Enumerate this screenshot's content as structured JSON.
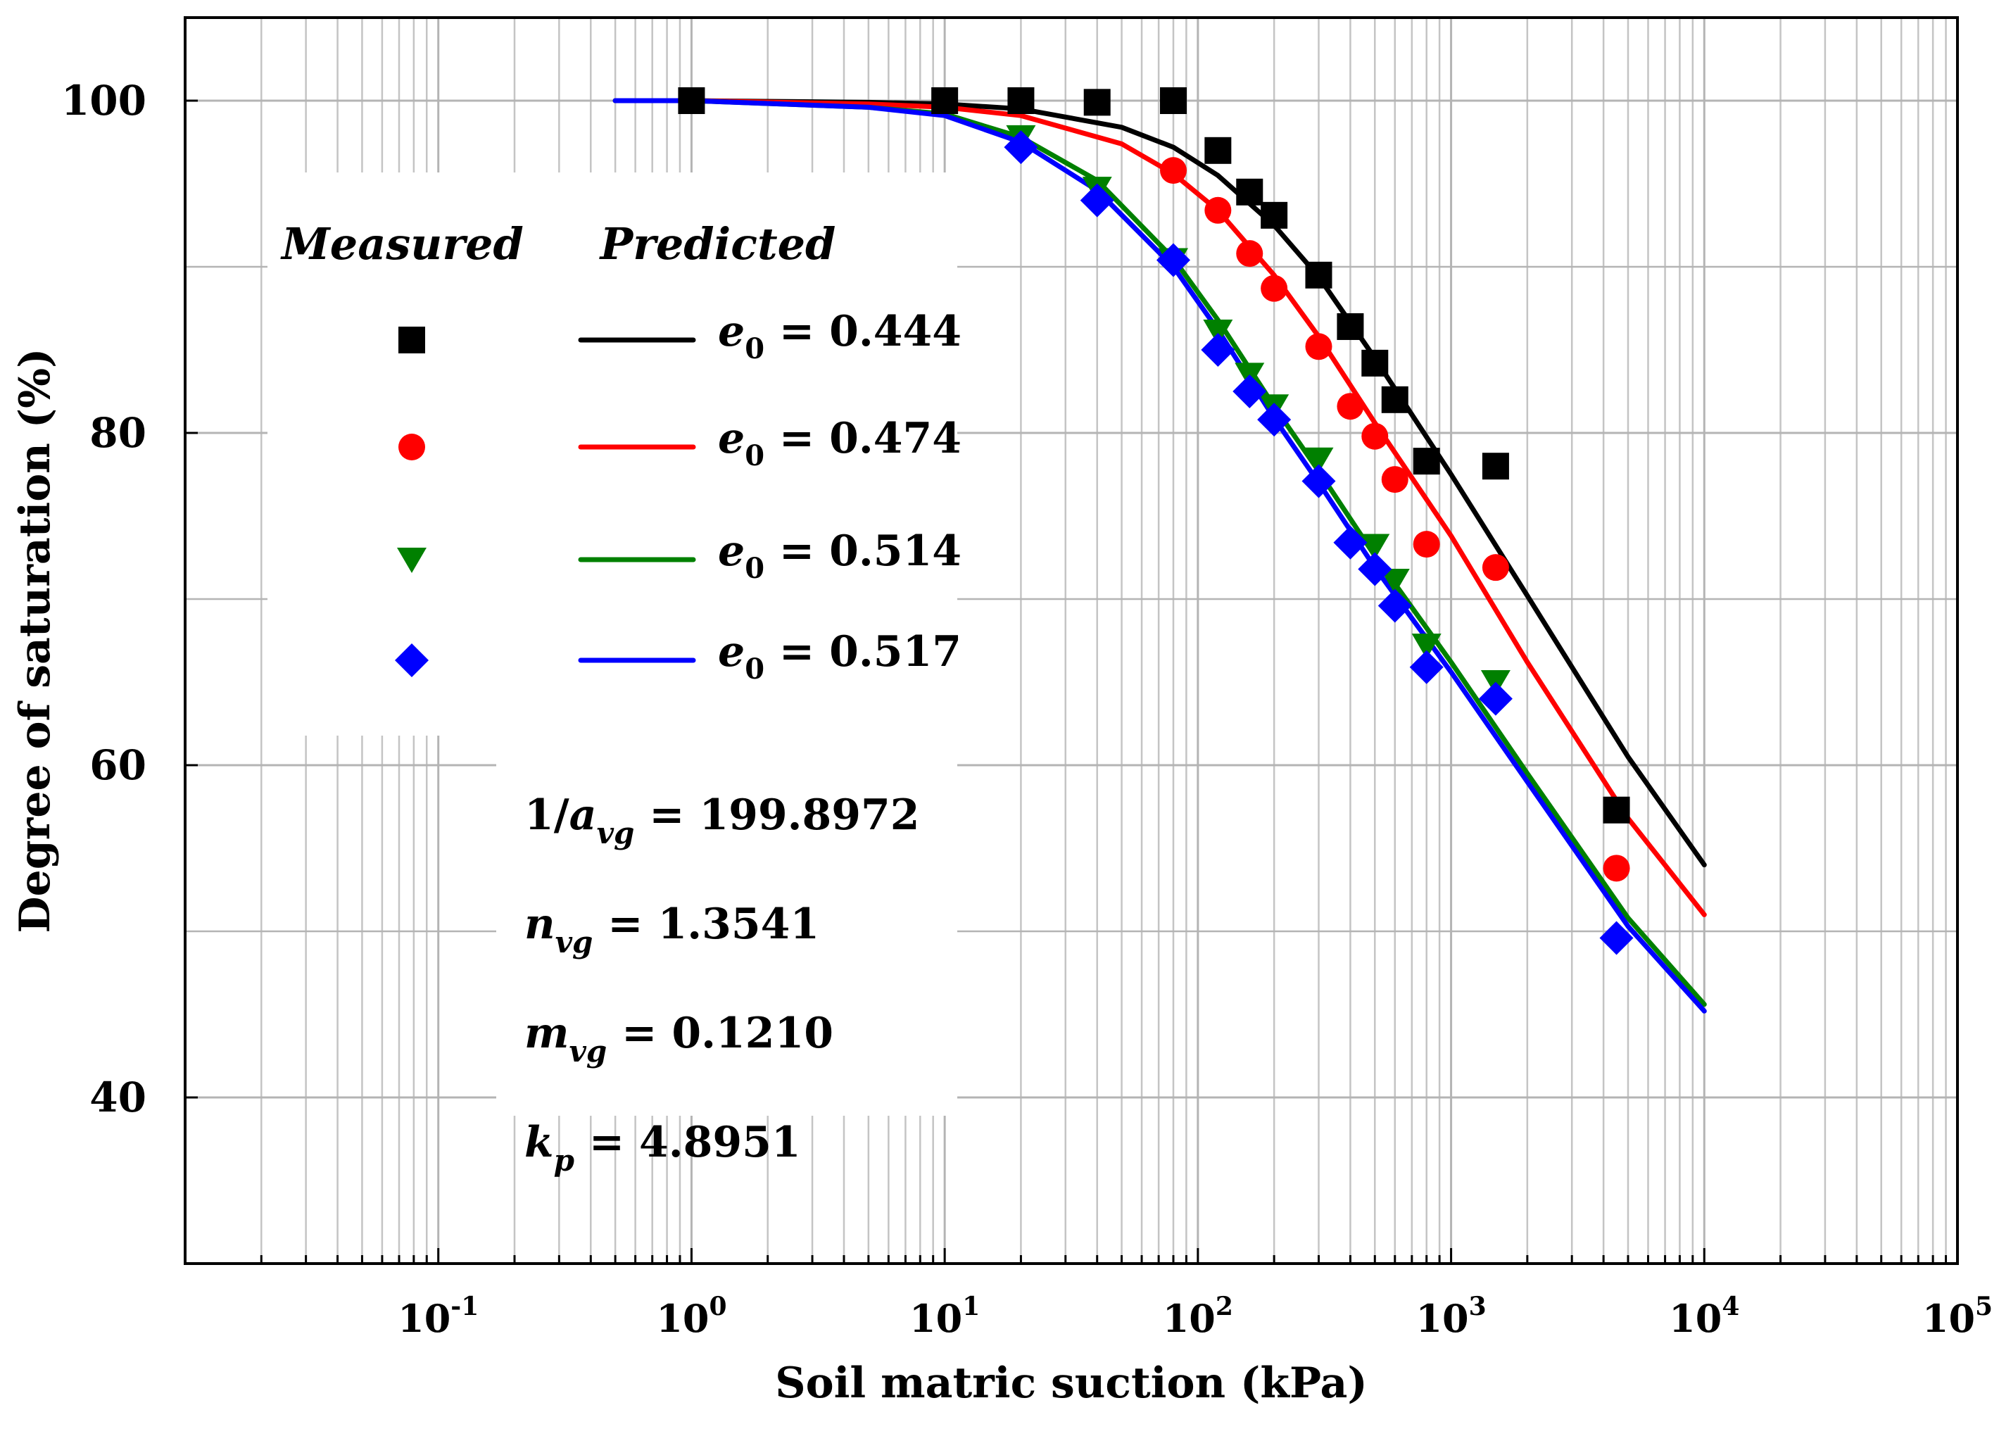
{
  "chart_data": {
    "type": "scatter",
    "title": "",
    "xlabel": "Soil matric suction (kPa)",
    "ylabel": "Degree of saturation (%)",
    "x_scale": "log",
    "xlim": [
      0.01,
      100000
    ],
    "ylim": [
      30,
      105
    ],
    "grid": true,
    "x_tick_labels": [
      {
        "base": "10",
        "exp": "-1",
        "value": 0.1
      },
      {
        "base": "10",
        "exp": "0",
        "value": 1
      },
      {
        "base": "10",
        "exp": "1",
        "value": 10
      },
      {
        "base": "10",
        "exp": "2",
        "value": 100
      },
      {
        "base": "10",
        "exp": "3",
        "value": 1000
      },
      {
        "base": "10",
        "exp": "4",
        "value": 10000
      },
      {
        "base": "10",
        "exp": "5",
        "value": 100000
      }
    ],
    "y_tick_labels": [
      {
        "label": "40",
        "value": 40
      },
      {
        "label": "60",
        "value": 60
      },
      {
        "label": "80",
        "value": 80
      },
      {
        "label": "100",
        "value": 100
      }
    ],
    "legend": {
      "position": "left",
      "measured_title": "Measured",
      "predicted_title": "Predicted",
      "entries": [
        {
          "sym": "e",
          "sub": "0",
          "rest": " = 0.444"
        },
        {
          "sym": "e",
          "sub": "0",
          "rest": " = 0.474"
        },
        {
          "sym": "e",
          "sub": "0",
          "rest": " = 0.514"
        },
        {
          "sym": "e",
          "sub": "0",
          "rest": " = 0.517"
        }
      ]
    },
    "parameters": [
      {
        "pre": "1/",
        "sym": "a",
        "sub": "vg",
        "rest": " = 199.8972"
      },
      {
        "pre": "",
        "sym": "n",
        "sub": "vg",
        "rest": " = 1.3541"
      },
      {
        "pre": "",
        "sym": "m",
        "sub": "vg",
        "rest": " = 0.1210"
      },
      {
        "pre": "",
        "sym": "k",
        "sub": "p",
        "rest": " = 4.8951"
      }
    ],
    "series": [
      {
        "name": "e0 = 0.444",
        "color": "#000000",
        "marker": "square",
        "measured_x": [
          1,
          10,
          20,
          40,
          80,
          120,
          160,
          200,
          300,
          400,
          500,
          600,
          800,
          1500,
          4500
        ],
        "measured_y": [
          100,
          100,
          100,
          99.9,
          100,
          97,
          94.5,
          93.1,
          89.5,
          86.4,
          84.2,
          82,
          78.3,
          78,
          57.3
        ],
        "predicted_x": [
          0.5,
          1,
          5,
          10,
          20,
          50,
          80,
          120,
          200,
          300,
          500,
          1000,
          2000,
          5000,
          10000
        ],
        "predicted_y": [
          100,
          100,
          99.9,
          99.8,
          99.5,
          98.4,
          97.2,
          95.5,
          92.5,
          89.4,
          84.5,
          77.5,
          70.2,
          60.5,
          54
        ]
      },
      {
        "name": "e0 = 0.474",
        "color": "#ff0000",
        "marker": "circle",
        "measured_x": [
          80,
          120,
          160,
          200,
          300,
          400,
          500,
          600,
          800,
          1500,
          4500
        ],
        "measured_y": [
          95.8,
          93.4,
          90.8,
          88.7,
          85.2,
          81.6,
          79.8,
          77.2,
          73.3,
          71.9,
          53.8
        ],
        "predicted_x": [
          0.5,
          1,
          5,
          10,
          20,
          50,
          80,
          120,
          200,
          300,
          500,
          1000,
          2000,
          5000,
          10000
        ],
        "predicted_y": [
          100,
          100,
          99.8,
          99.6,
          99.1,
          97.4,
          95.6,
          93.4,
          89.5,
          85.8,
          80.6,
          73.8,
          66.2,
          56.8,
          51
        ]
      },
      {
        "name": "e0 = 0.514",
        "color": "#008000",
        "marker": "triangle-down",
        "measured_x": [
          20,
          40,
          80,
          120,
          160,
          200,
          300,
          500,
          600,
          800,
          1500
        ],
        "measured_y": [
          97.8,
          94.7,
          90.4,
          86.1,
          83.5,
          81.6,
          78.4,
          73.2,
          71.1,
          67.2,
          65
        ],
        "predicted_x": [
          0.5,
          1,
          5,
          10,
          20,
          40,
          80,
          120,
          200,
          300,
          500,
          1000,
          2000,
          5000,
          10000
        ],
        "predicted_y": [
          100,
          100,
          99.6,
          99.2,
          97.8,
          95.2,
          90.5,
          86.8,
          81.6,
          77.7,
          72.6,
          66.2,
          59.5,
          50.8,
          45.6
        ]
      },
      {
        "name": "e0 = 0.517",
        "color": "#0000ff",
        "marker": "diamond",
        "measured_x": [
          20,
          40,
          80,
          120,
          160,
          200,
          300,
          400,
          500,
          600,
          800,
          1500,
          4500
        ],
        "measured_y": [
          97.2,
          94,
          90.4,
          85,
          82.5,
          80.8,
          77.1,
          73.4,
          71.8,
          69.6,
          65.9,
          64,
          49.6
        ],
        "predicted_x": [
          0.5,
          1,
          5,
          10,
          20,
          40,
          80,
          120,
          200,
          300,
          500,
          1000,
          2000,
          5000,
          10000
        ],
        "predicted_y": [
          100,
          100,
          99.6,
          99.1,
          97.5,
          94.6,
          90,
          86.2,
          80.9,
          77,
          71.9,
          65.6,
          59,
          50.3,
          45.2
        ]
      }
    ]
  }
}
